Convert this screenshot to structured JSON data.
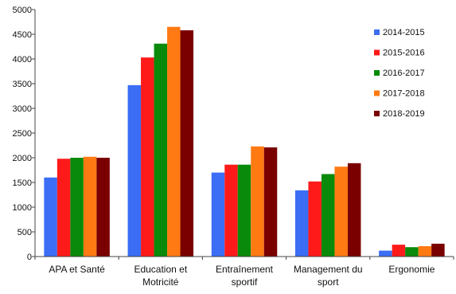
{
  "chart_data": {
    "type": "bar",
    "title": "",
    "xlabel": "",
    "ylabel": "",
    "ylim": [
      0,
      5000
    ],
    "ytick_labels": [
      "0 ",
      "500 ",
      "1000 ",
      "1500 ",
      "2000 ",
      "2500 ",
      "3000 ",
      "3500 ",
      "4000 ",
      "4500 ",
      "5000 "
    ],
    "grid": false,
    "legend_position": "top-right inside plot",
    "categories": [
      [
        "APA et Santé"
      ],
      [
        "Education et",
        "Motricité"
      ],
      [
        "Entraînement",
        "sportif"
      ],
      [
        "Management du",
        "sport"
      ],
      [
        "Ergonomie"
      ]
    ],
    "series": [
      {
        "name": "2014-2015",
        "color": "#3b6df5",
        "values": [
          1600,
          3470,
          1700,
          1340,
          120
        ]
      },
      {
        "name": "2015-2016",
        "color": "#ff1a1a",
        "values": [
          1980,
          4030,
          1860,
          1520,
          240
        ]
      },
      {
        "name": "2016-2017",
        "color": "#0a8a0a",
        "values": [
          2000,
          4310,
          1860,
          1670,
          190
        ]
      },
      {
        "name": "2017-2018",
        "color": "#ff7a12",
        "values": [
          2020,
          4650,
          2230,
          1820,
          210
        ]
      },
      {
        "name": "2018-2019",
        "color": "#7a0000",
        "values": [
          2000,
          4580,
          2210,
          1890,
          260
        ]
      }
    ]
  }
}
